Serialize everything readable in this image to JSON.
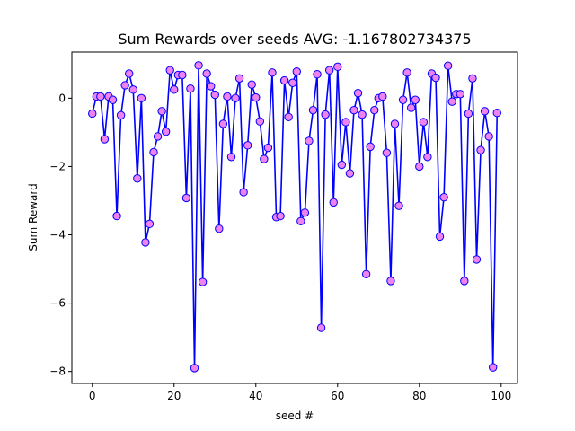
{
  "chart_data": {
    "type": "line",
    "title": "Sum Rewards over seeds AVG:  -1.167802734375",
    "xlabel": "seed #",
    "ylabel": "Sum Reward",
    "xlim": [
      -5,
      104
    ],
    "ylim": [
      -8.35,
      1.35
    ],
    "xticks": [
      0,
      20,
      40,
      60,
      80,
      100
    ],
    "xtick_labels": [
      "0",
      "20",
      "40",
      "60",
      "80",
      "100"
    ],
    "yticks": [
      0,
      -2,
      -4,
      -6,
      -8
    ],
    "ytick_labels": [
      "0",
      "−2",
      "−4",
      "−6",
      "−8"
    ],
    "grid": false,
    "line_color": "#0000ff",
    "marker_face_color": "#ee82ee",
    "marker_edge_color": "#0000ff",
    "series": [
      {
        "x": [
          0,
          1,
          2,
          3,
          4,
          5,
          6,
          7,
          8,
          9,
          10,
          11,
          12,
          13,
          14,
          15,
          16,
          17,
          18,
          19,
          20,
          21,
          22,
          23,
          24,
          25,
          26,
          27,
          28,
          29,
          30,
          31,
          32,
          33,
          34,
          35,
          36,
          37,
          38,
          39,
          40,
          41,
          42,
          43,
          44,
          45,
          46,
          47,
          48,
          49,
          50,
          51,
          52,
          53,
          54,
          55,
          56,
          57,
          58,
          59,
          60,
          61,
          62,
          63,
          64,
          65,
          66,
          67,
          68,
          69,
          70,
          71,
          72,
          73,
          74,
          75,
          76,
          77,
          78,
          79,
          80,
          81,
          82,
          83,
          84,
          85,
          86,
          87,
          88,
          89,
          90,
          91,
          92,
          93,
          94,
          95,
          96,
          97,
          98,
          99
        ],
        "y": [
          -0.45,
          0.05,
          0.05,
          -1.2,
          0.05,
          -0.05,
          -3.45,
          -0.5,
          0.38,
          0.72,
          0.25,
          -2.35,
          0.0,
          -4.22,
          -3.68,
          -1.58,
          -1.12,
          -0.38,
          -0.98,
          0.82,
          0.25,
          0.68,
          0.68,
          -2.92,
          0.28,
          -7.9,
          0.96,
          -5.38,
          0.72,
          0.35,
          0.1,
          -3.82,
          -0.75,
          0.05,
          -1.72,
          0.0,
          0.58,
          -2.75,
          -1.38,
          0.4,
          0.02,
          -0.68,
          -1.78,
          -1.45,
          0.75,
          -3.48,
          -3.45,
          0.52,
          -0.55,
          0.45,
          0.78,
          -3.6,
          -3.35,
          -1.25,
          -0.35,
          0.7,
          -6.72,
          -0.48,
          0.82,
          -3.05,
          0.92,
          -1.95,
          -0.7,
          -2.2,
          -0.35,
          0.15,
          -0.48,
          -5.15,
          -1.42,
          -0.35,
          0.0,
          0.05,
          -1.6,
          -5.35,
          -0.75,
          -3.15,
          -0.05,
          0.75,
          -0.28,
          -0.05,
          -2.0,
          -0.7,
          -1.72,
          0.72,
          0.6,
          -4.05,
          -2.9,
          0.95,
          -0.1,
          0.12,
          0.12,
          -5.35,
          -0.45,
          0.58,
          -4.72,
          -1.52,
          -0.38,
          -1.12,
          -7.88,
          -0.43
        ]
      }
    ]
  }
}
